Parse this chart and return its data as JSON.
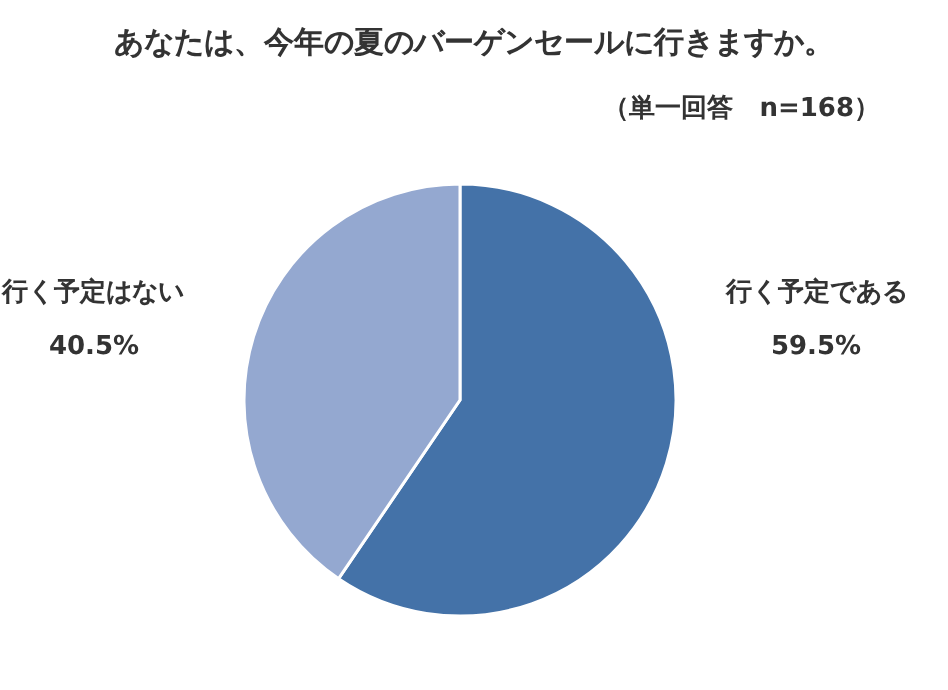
{
  "chart_data": {
    "type": "pie",
    "title": "あなたは、今年の夏のバーゲンセールに行きますか。",
    "subtitle": "（単一回答　n=168）",
    "categories": [
      "行く予定である",
      "行く予定はない"
    ],
    "values": [
      59.5,
      40.5
    ],
    "colors": [
      "#4472a8",
      "#94a8d0"
    ],
    "value_labels": [
      "59.5%",
      "40.5%"
    ]
  }
}
